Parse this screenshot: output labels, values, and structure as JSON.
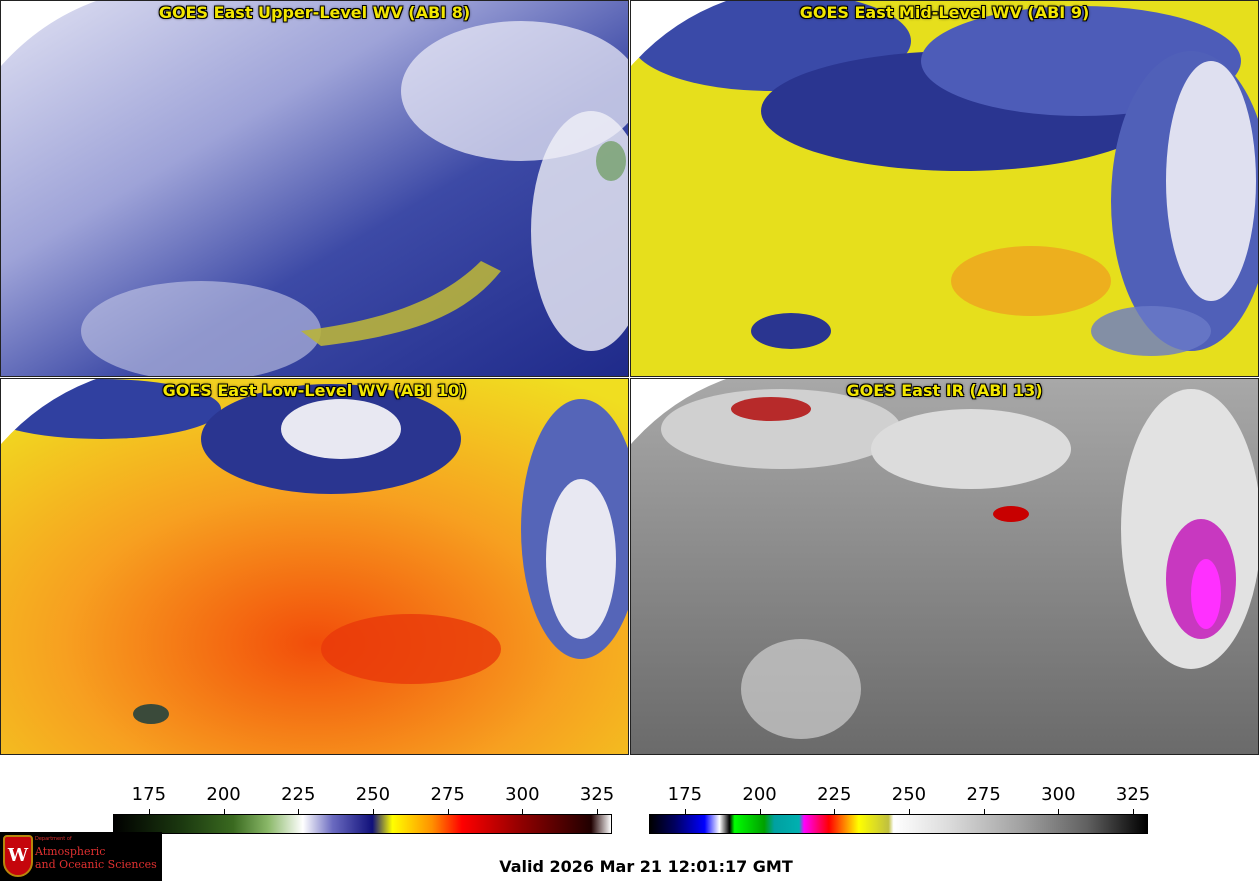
{
  "panels": [
    {
      "title": "GOES East Upper-Level WV (ABI 8)",
      "colortable": "wv"
    },
    {
      "title": "GOES East Mid-Level WV (ABI 9)",
      "colortable": "wv"
    },
    {
      "title": "GOES East Low-Level WV (ABI 10)",
      "colortable": "wv"
    },
    {
      "title": "GOES East IR (ABI 13)",
      "colortable": "ir"
    }
  ],
  "colorbars": [
    {
      "name": "water-vapor",
      "ticks": [
        "175",
        "200",
        "225",
        "250",
        "275",
        "300",
        "325"
      ],
      "range": [
        163,
        330
      ]
    },
    {
      "name": "infrared",
      "ticks": [
        "175",
        "200",
        "225",
        "250",
        "275",
        "300",
        "325"
      ],
      "range": [
        163,
        330
      ]
    }
  ],
  "valid_time": "Valid 2026 Mar 21 12:01:17 GMT",
  "logo": {
    "department": "Department of",
    "line1": "Atmospheric",
    "line2": "and Oceanic Sciences",
    "seal_letter": "W"
  },
  "colors": {
    "title_text": "#f2e600",
    "state_lines": "#e02020",
    "coastline": "#1a9a1a",
    "border_lines": "#8b5a1a"
  }
}
